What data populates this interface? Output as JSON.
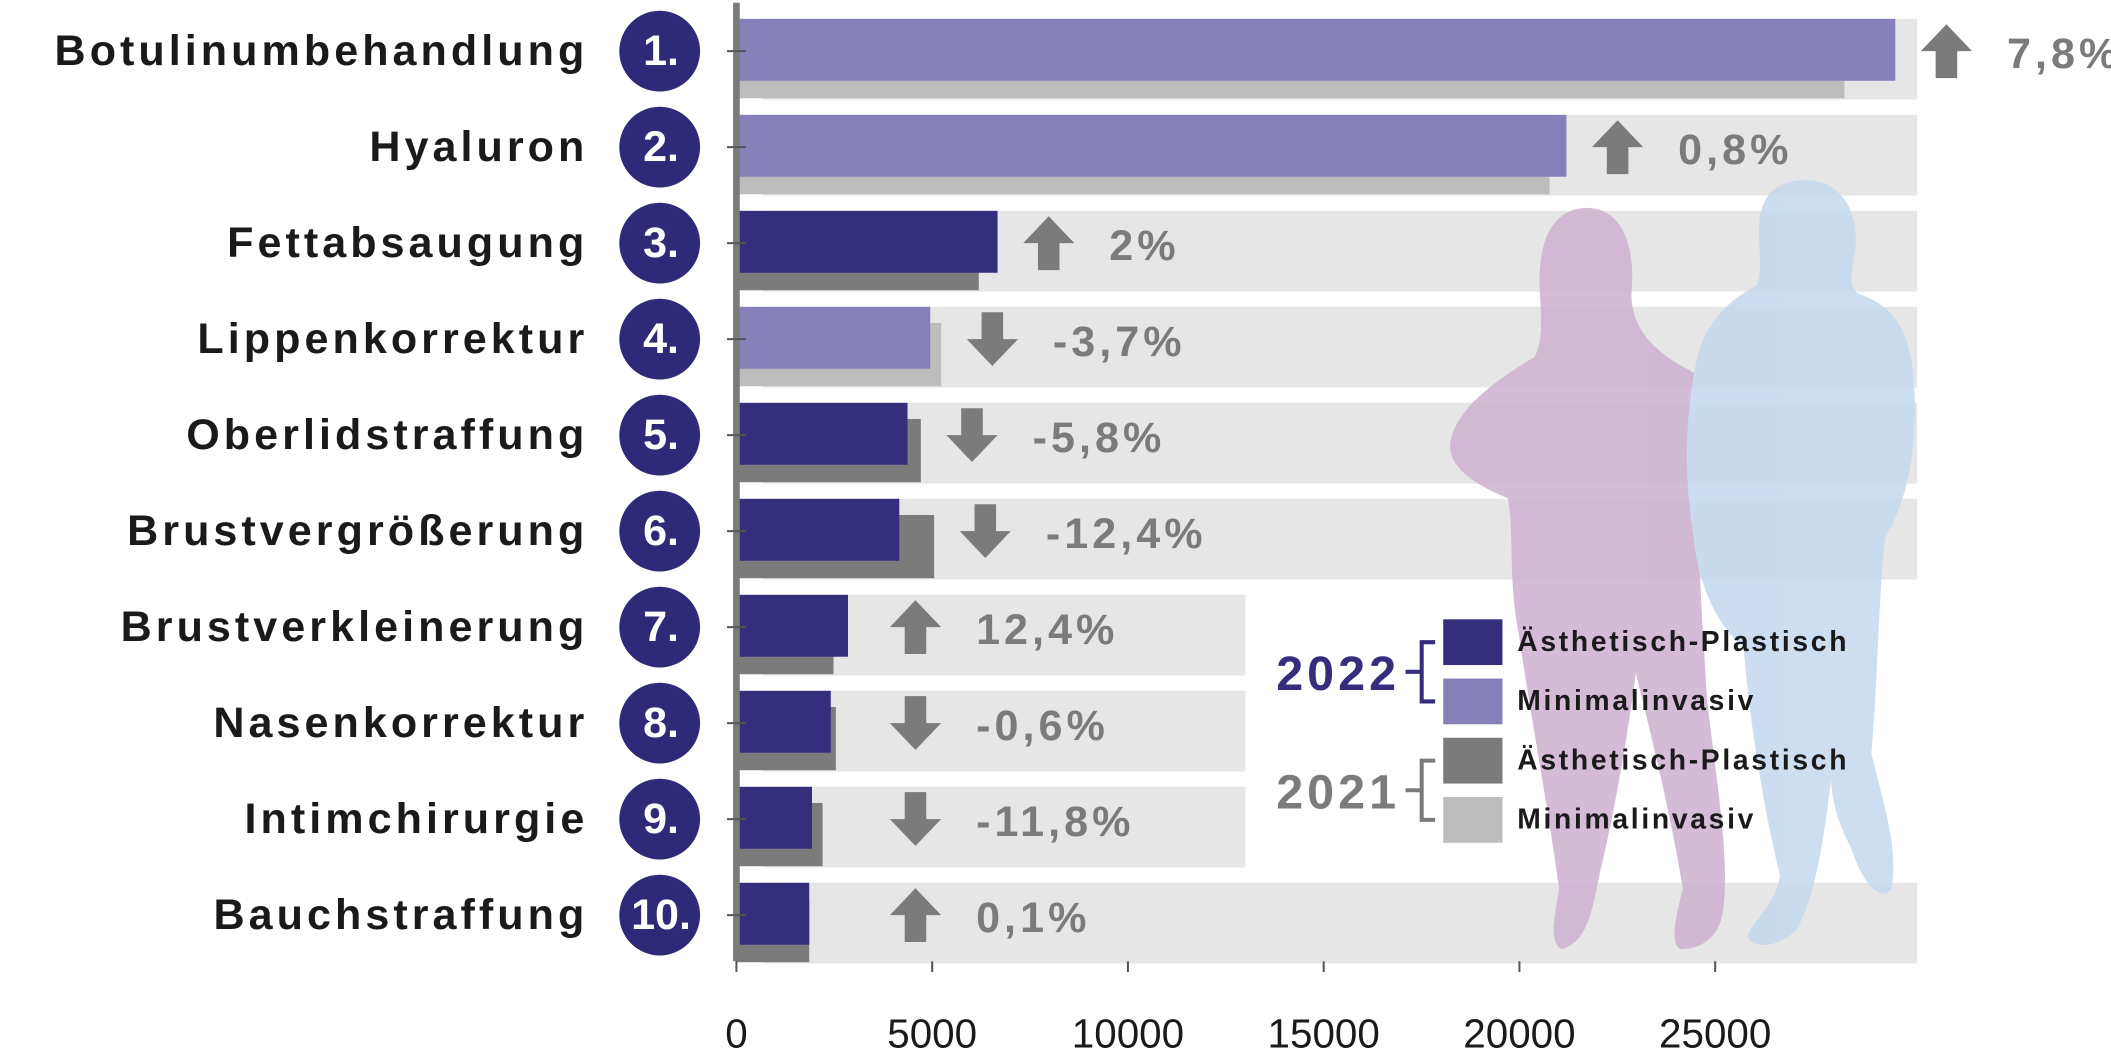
{
  "chart_data": {
    "type": "bar",
    "orientation": "horizontal",
    "categories": [
      "Botulinumbehandlung",
      "Hyaluron",
      "Fettabsaugung",
      "Lippenkorrektur",
      "Oberlidstraffung",
      "Brustvergrößerung",
      "Brustverkleinerung",
      "Nasenkorrektur",
      "Intimchirurgie",
      "Bauchstraffung"
    ],
    "ranks": [
      "1.",
      "2.",
      "3.",
      "4.",
      "5.",
      "6.",
      "7.",
      "8.",
      "9.",
      "10."
    ],
    "series": [
      {
        "name": "2021",
        "values": [
          28300,
          20770,
          6190,
          5230,
          4710,
          5050,
          2480,
          2540,
          2200,
          1860
        ],
        "colors": [
          "#bdbdbd",
          "#bdbdbd",
          "#7b7b7b",
          "#bdbdbd",
          "#7b7b7b",
          "#7b7b7b",
          "#7b7b7b",
          "#7b7b7b",
          "#7b7b7b",
          "#7b7b7b"
        ]
      },
      {
        "name": "2022",
        "values": [
          29600,
          21200,
          6670,
          4950,
          4370,
          4160,
          2850,
          2410,
          1930,
          1860
        ],
        "colors": [
          "#8580b8",
          "#8580b8",
          "#352e7d",
          "#8580b8",
          "#352e7d",
          "#352e7d",
          "#352e7d",
          "#352e7d",
          "#352e7d",
          "#352e7d"
        ]
      }
    ],
    "changes": {
      "values": [
        7.8,
        0.8,
        2,
        -3.7,
        -5.8,
        -12.4,
        12.4,
        -0.6,
        -11.8,
        0.1
      ],
      "value_labels": [
        "7,8%",
        "0,8%",
        "2%",
        "-3,7%",
        "-5,8%",
        "-12,4%",
        "12,4%",
        "-0,6%",
        "-11,8%",
        "0,1%"
      ]
    },
    "xlim": [
      0,
      30000
    ],
    "xticks": [
      0,
      5000,
      10000,
      15000,
      20000,
      25000
    ],
    "legend": {
      "groups": [
        {
          "label": "2022",
          "color": "#352e7d",
          "entries": [
            {
              "name": "Ästhetisch-Plastisch",
              "color": "#352e7d"
            },
            {
              "name": "Minimalinvasiv",
              "color": "#8580b8"
            }
          ]
        },
        {
          "label": "2021",
          "color": "#7b7b7b",
          "entries": [
            {
              "name": "Ästhetisch-Plastisch",
              "color": "#7b7b7b"
            },
            {
              "name": "Minimalinvasiv",
              "color": "#bdbdbd"
            }
          ]
        }
      ]
    }
  }
}
